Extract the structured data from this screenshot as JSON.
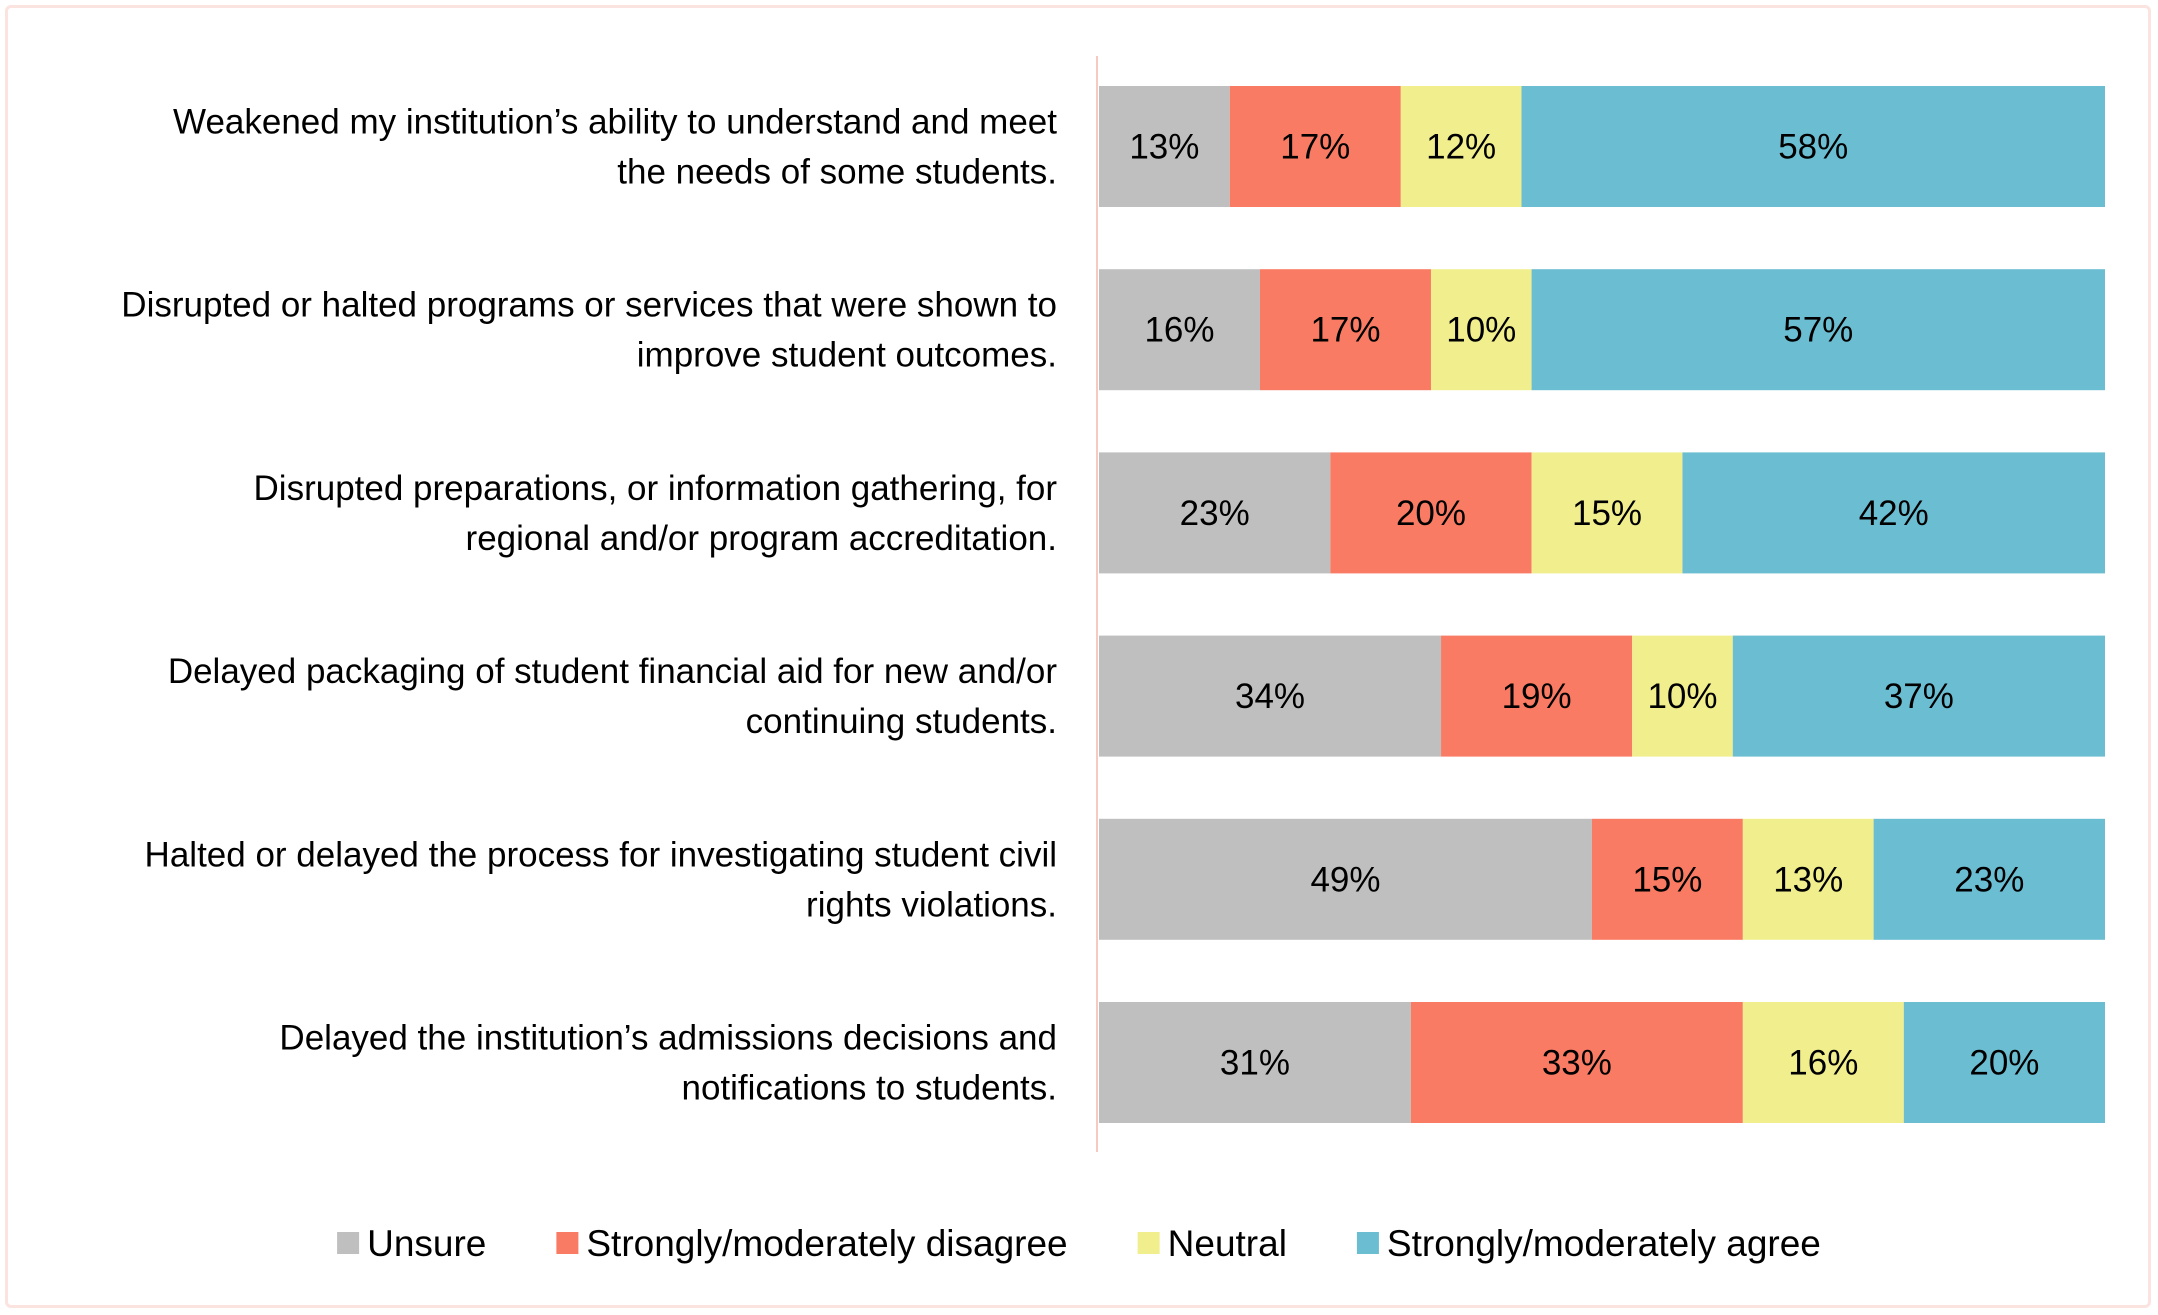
{
  "chart_data": {
    "type": "bar",
    "orientation": "horizontal",
    "stacked": true,
    "normalized_percent": true,
    "categories": [
      [
        "Weakened my institution’s ability to understand and meet",
        "the needs of some students."
      ],
      [
        "Disrupted or halted programs or services that were shown to",
        "improve student outcomes."
      ],
      [
        "Disrupted preparations, or information gathering, for",
        "regional and/or program accreditation."
      ],
      [
        "Delayed packaging of student financial aid for new and/or",
        "continuing students."
      ],
      [
        "Halted or delayed the process for investigating student civil",
        "rights violations."
      ],
      [
        "Delayed the institution’s admissions decisions and",
        "notifications to students."
      ]
    ],
    "series": [
      {
        "name": "Unsure",
        "color": "#bfbfbf",
        "values": [
          13,
          16,
          23,
          34,
          49,
          31
        ]
      },
      {
        "name": "Strongly/moderately disagree",
        "color": "#f97b63",
        "values": [
          17,
          17,
          20,
          19,
          15,
          33
        ]
      },
      {
        "name": "Neutral",
        "color": "#f1ee8e",
        "values": [
          12,
          10,
          15,
          10,
          13,
          16
        ]
      },
      {
        "name": "Strongly/moderately agree",
        "color": "#6bbdd2",
        "values": [
          58,
          57,
          42,
          37,
          23,
          20
        ]
      }
    ],
    "value_suffix": "%",
    "xlim": [
      0,
      100
    ],
    "legend_position": "bottom",
    "grid": false,
    "title": "",
    "xlabel": "",
    "ylabel": ""
  },
  "colors": {
    "axis_line": "#f7c9c0",
    "frame_border": "#fbe3df"
  }
}
